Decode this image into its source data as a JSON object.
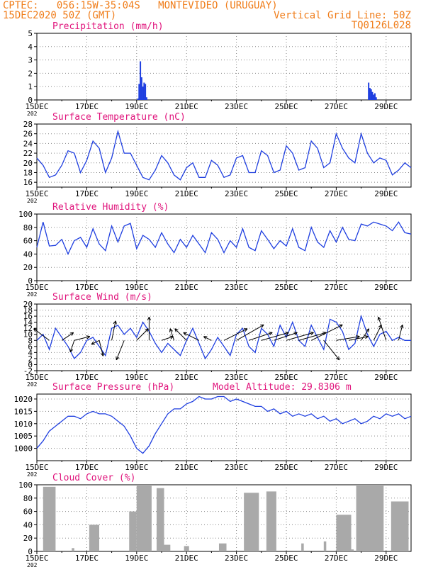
{
  "header": {
    "line1": "CPTEC:   056:15W-35:04S   MONTEVIDEO (URUGUAY)",
    "line2": "15DEC2020 50Z (GMT)",
    "grid_note": "Vertical Grid Line: 50Z",
    "code": "TQ0126L028"
  },
  "x_axis": {
    "tick_labels": [
      "15DEC",
      "17DEC",
      "19DEC",
      "21DEC",
      "23DEC",
      "25DEC",
      "27DEC",
      "29DEC"
    ],
    "tick_days": [
      0,
      2,
      4,
      6,
      8,
      10,
      12,
      14
    ],
    "year_label": "202",
    "range_days": [
      0,
      15
    ]
  },
  "colors": {
    "header": "#f07d1a",
    "title": "#e0147c",
    "line": "#1f3fe0",
    "bar": "#1f3fe0",
    "cloud": "#a9a9a9"
  },
  "chart_data": [
    {
      "type": "bar",
      "title": "Precipitation (mm/h)",
      "ylim": [
        0,
        5
      ],
      "yticks": [
        "0",
        "1",
        "2",
        "3",
        "4",
        "5"
      ],
      "x_days": [
        4.05,
        4.1,
        4.15,
        4.2,
        4.25,
        4.3,
        4.35,
        4.4,
        13.3,
        13.35,
        13.4,
        13.45,
        13.5,
        13.55,
        13.6
      ],
      "values": [
        0.1,
        1.2,
        2.9,
        1.7,
        1.0,
        1.3,
        1.2,
        0.2,
        1.3,
        0.9,
        0.8,
        0.6,
        0.4,
        0.5,
        0.2
      ],
      "grid": true
    },
    {
      "type": "line",
      "title": "Surface Temperature (nC)",
      "ylim": [
        15,
        28
      ],
      "yticks": [
        "16",
        "18",
        "20",
        "22",
        "24",
        "26",
        "28"
      ],
      "x_days": [
        0,
        0.25,
        0.5,
        0.75,
        1,
        1.25,
        1.5,
        1.75,
        2,
        2.25,
        2.5,
        2.75,
        3,
        3.25,
        3.5,
        3.75,
        4,
        4.25,
        4.5,
        4.75,
        5,
        5.25,
        5.5,
        5.75,
        6,
        6.25,
        6.5,
        6.75,
        7,
        7.25,
        7.5,
        7.75,
        8,
        8.25,
        8.5,
        8.75,
        9,
        9.25,
        9.5,
        9.75,
        10,
        10.25,
        10.5,
        10.75,
        11,
        11.25,
        11.5,
        11.75,
        12,
        12.25,
        12.5,
        12.75,
        13,
        13.25,
        13.5,
        13.75,
        14,
        14.25,
        14.5,
        14.75,
        15
      ],
      "values": [
        21,
        19.5,
        17,
        17.5,
        19.5,
        22.5,
        22,
        18,
        20.5,
        24.5,
        23,
        18,
        21,
        26.5,
        22,
        22,
        19.5,
        17,
        16.5,
        18.5,
        21.5,
        20,
        17.5,
        16.5,
        19,
        20,
        17,
        17,
        20.5,
        19.5,
        17,
        17.5,
        21,
        21.5,
        18,
        18,
        22.5,
        21.5,
        18,
        18.5,
        23.5,
        22,
        18.5,
        19,
        24.5,
        23,
        19,
        20,
        26,
        23,
        21,
        20,
        26,
        22,
        20,
        21,
        20.5,
        17.5,
        18.5,
        20,
        19
      ],
      "grid": true
    },
    {
      "type": "line",
      "title": "Relative Humidity (%)",
      "ylim": [
        0,
        100
      ],
      "yticks": [
        "0",
        "20",
        "40",
        "60",
        "80",
        "100"
      ],
      "x_days": [
        0,
        0.25,
        0.5,
        0.75,
        1,
        1.25,
        1.5,
        1.75,
        2,
        2.25,
        2.5,
        2.75,
        3,
        3.25,
        3.5,
        3.75,
        4,
        4.25,
        4.5,
        4.75,
        5,
        5.25,
        5.5,
        5.75,
        6,
        6.25,
        6.5,
        6.75,
        7,
        7.25,
        7.5,
        7.75,
        8,
        8.25,
        8.5,
        8.75,
        9,
        9.25,
        9.5,
        9.75,
        10,
        10.25,
        10.5,
        10.75,
        11,
        11.25,
        11.5,
        11.75,
        12,
        12.25,
        12.5,
        12.75,
        13,
        13.25,
        13.5,
        13.75,
        14,
        14.25,
        14.5,
        14.75,
        15
      ],
      "values": [
        50,
        88,
        52,
        53,
        62,
        40,
        60,
        65,
        50,
        78,
        55,
        45,
        82,
        58,
        82,
        86,
        48,
        68,
        62,
        50,
        72,
        55,
        42,
        62,
        50,
        68,
        55,
        42,
        72,
        62,
        42,
        60,
        50,
        78,
        50,
        45,
        75,
        62,
        48,
        60,
        52,
        78,
        50,
        45,
        80,
        58,
        50,
        75,
        58,
        80,
        62,
        60,
        85,
        82,
        88,
        85,
        82,
        75,
        88,
        72,
        70
      ],
      "grid": true
    },
    {
      "type": "line",
      "title": "Surface Wind (m/s)",
      "ylim": [
        -2,
        20
      ],
      "yticks": [
        "-2",
        "0",
        "2",
        "4",
        "6",
        "8",
        "10",
        "12",
        "14",
        "16",
        "18",
        "20"
      ],
      "x_days": [
        0,
        0.25,
        0.5,
        0.75,
        1,
        1.25,
        1.5,
        1.75,
        2,
        2.25,
        2.5,
        2.75,
        3,
        3.25,
        3.5,
        3.75,
        4,
        4.25,
        4.5,
        4.75,
        5,
        5.25,
        5.5,
        5.75,
        6,
        6.25,
        6.5,
        6.75,
        7,
        7.25,
        7.5,
        7.75,
        8,
        8.25,
        8.5,
        8.75,
        9,
        9.25,
        9.5,
        9.75,
        10,
        10.25,
        10.5,
        10.75,
        11,
        11.25,
        11.5,
        11.75,
        12,
        12.25,
        12.5,
        12.75,
        13,
        13.25,
        13.5,
        13.75,
        14,
        14.25,
        14.5,
        14.75,
        15
      ],
      "values": [
        8,
        10,
        5,
        12,
        9,
        6,
        2,
        4,
        8,
        9,
        6,
        3,
        12,
        13,
        10,
        12,
        9,
        14,
        11,
        7,
        4,
        7,
        5,
        3,
        8,
        12,
        7,
        2,
        5,
        9,
        6,
        3,
        10,
        12,
        6,
        4,
        12,
        10,
        6,
        13,
        9,
        14,
        8,
        6,
        13,
        9,
        5,
        15,
        14,
        11,
        5,
        7,
        16,
        10,
        6,
        10,
        11,
        8,
        9,
        8,
        8
      ],
      "arrows": [
        {
          "x": 0.5,
          "u": -4,
          "v": 3
        },
        {
          "x": 1,
          "u": 3,
          "v": 2
        },
        {
          "x": 1.5,
          "u": 4,
          "v": 1
        },
        {
          "x": 1.5,
          "u": -1,
          "v": -3
        },
        {
          "x": 2.5,
          "u": -2,
          "v": -1
        },
        {
          "x": 2.5,
          "u": 1,
          "v": -4
        },
        {
          "x": 3,
          "u": 1,
          "v": 5
        },
        {
          "x": 3.5,
          "u": -2,
          "v": -5
        },
        {
          "x": 4,
          "u": 3,
          "v": 3
        },
        {
          "x": 4.5,
          "u": 0,
          "v": 6
        },
        {
          "x": 5,
          "u": 3,
          "v": 1
        },
        {
          "x": 5.5,
          "u": -1,
          "v": 3
        },
        {
          "x": 6,
          "u": -3,
          "v": 3
        },
        {
          "x": 6.5,
          "u": -4,
          "v": 2
        },
        {
          "x": 7,
          "u": -2,
          "v": 1
        },
        {
          "x": 7.5,
          "u": 6,
          "v": 3
        },
        {
          "x": 8,
          "u": 7,
          "v": 4
        },
        {
          "x": 8.5,
          "u": 6,
          "v": 2
        },
        {
          "x": 9,
          "u": 7,
          "v": 2
        },
        {
          "x": 9.5,
          "u": 6,
          "v": 2
        },
        {
          "x": 10,
          "u": 7,
          "v": 2
        },
        {
          "x": 10.5,
          "u": 7,
          "v": 2
        },
        {
          "x": 11,
          "u": 8,
          "v": 4
        },
        {
          "x": 11.5,
          "u": 4,
          "v": -5
        },
        {
          "x": 12,
          "u": 6,
          "v": 1
        },
        {
          "x": 12.5,
          "u": 5,
          "v": 1
        },
        {
          "x": 13,
          "u": 2,
          "v": 3
        },
        {
          "x": 13.5,
          "u": 2,
          "v": 4
        },
        {
          "x": 14,
          "u": -2,
          "v": 6
        },
        {
          "x": 14.5,
          "u": 1,
          "v": 4
        }
      ],
      "grid": true
    },
    {
      "type": "line",
      "title": "Surface Pressure (hPa)",
      "annotation": "Model Altitude: 29.8306 m",
      "ylim": [
        995,
        1022
      ],
      "yticks": [
        "1000",
        "1005",
        "1010",
        "1015",
        "1020"
      ],
      "x_days": [
        0,
        0.25,
        0.5,
        0.75,
        1,
        1.25,
        1.5,
        1.75,
        2,
        2.25,
        2.5,
        2.75,
        3,
        3.25,
        3.5,
        3.75,
        4,
        4.25,
        4.5,
        4.75,
        5,
        5.25,
        5.5,
        5.75,
        6,
        6.25,
        6.5,
        6.75,
        7,
        7.25,
        7.5,
        7.75,
        8,
        8.25,
        8.5,
        8.75,
        9,
        9.25,
        9.5,
        9.75,
        10,
        10.25,
        10.5,
        10.75,
        11,
        11.25,
        11.5,
        11.75,
        12,
        12.25,
        12.5,
        12.75,
        13,
        13.25,
        13.5,
        13.75,
        14,
        14.25,
        14.5,
        14.75,
        15
      ],
      "values": [
        1000,
        1003,
        1007,
        1009,
        1011,
        1013,
        1013,
        1012,
        1014,
        1015,
        1014,
        1014,
        1013,
        1011,
        1009,
        1005,
        1000,
        998,
        1001,
        1006,
        1010,
        1014,
        1016,
        1016,
        1018,
        1019,
        1021,
        1020,
        1020,
        1021,
        1021,
        1019,
        1020,
        1019,
        1018,
        1017,
        1017,
        1015,
        1016,
        1014,
        1015,
        1013,
        1014,
        1013,
        1014,
        1012,
        1013,
        1011,
        1012,
        1010,
        1011,
        1012,
        1010,
        1011,
        1013,
        1012,
        1014,
        1013,
        1014,
        1012,
        1013
      ],
      "grid": true
    },
    {
      "type": "bar",
      "title": "Cloud Cover (%)",
      "ylim": [
        0,
        100
      ],
      "yticks": [
        "0",
        "20",
        "40",
        "60",
        "80",
        "100"
      ],
      "segments": [
        {
          "from": 0.25,
          "to": 0.75,
          "value": 97
        },
        {
          "from": 1.4,
          "to": 1.5,
          "value": 5
        },
        {
          "from": 2.1,
          "to": 2.5,
          "value": 40
        },
        {
          "from": 3.7,
          "to": 4.0,
          "value": 60
        },
        {
          "from": 4.0,
          "to": 4.6,
          "value": 100
        },
        {
          "from": 4.8,
          "to": 5.1,
          "value": 95
        },
        {
          "from": 5.1,
          "to": 5.35,
          "value": 10
        },
        {
          "from": 5.9,
          "to": 6.1,
          "value": 8
        },
        {
          "from": 7.3,
          "to": 7.6,
          "value": 12
        },
        {
          "from": 8.3,
          "to": 8.9,
          "value": 88
        },
        {
          "from": 9.2,
          "to": 9.6,
          "value": 90
        },
        {
          "from": 10.6,
          "to": 10.7,
          "value": 12
        },
        {
          "from": 11.5,
          "to": 11.6,
          "value": 15
        },
        {
          "from": 12.0,
          "to": 12.6,
          "value": 55
        },
        {
          "from": 12.6,
          "to": 12.7,
          "value": 3
        },
        {
          "from": 12.8,
          "to": 13.9,
          "value": 100
        },
        {
          "from": 14.2,
          "to": 14.9,
          "value": 75
        }
      ],
      "grid": true
    }
  ]
}
